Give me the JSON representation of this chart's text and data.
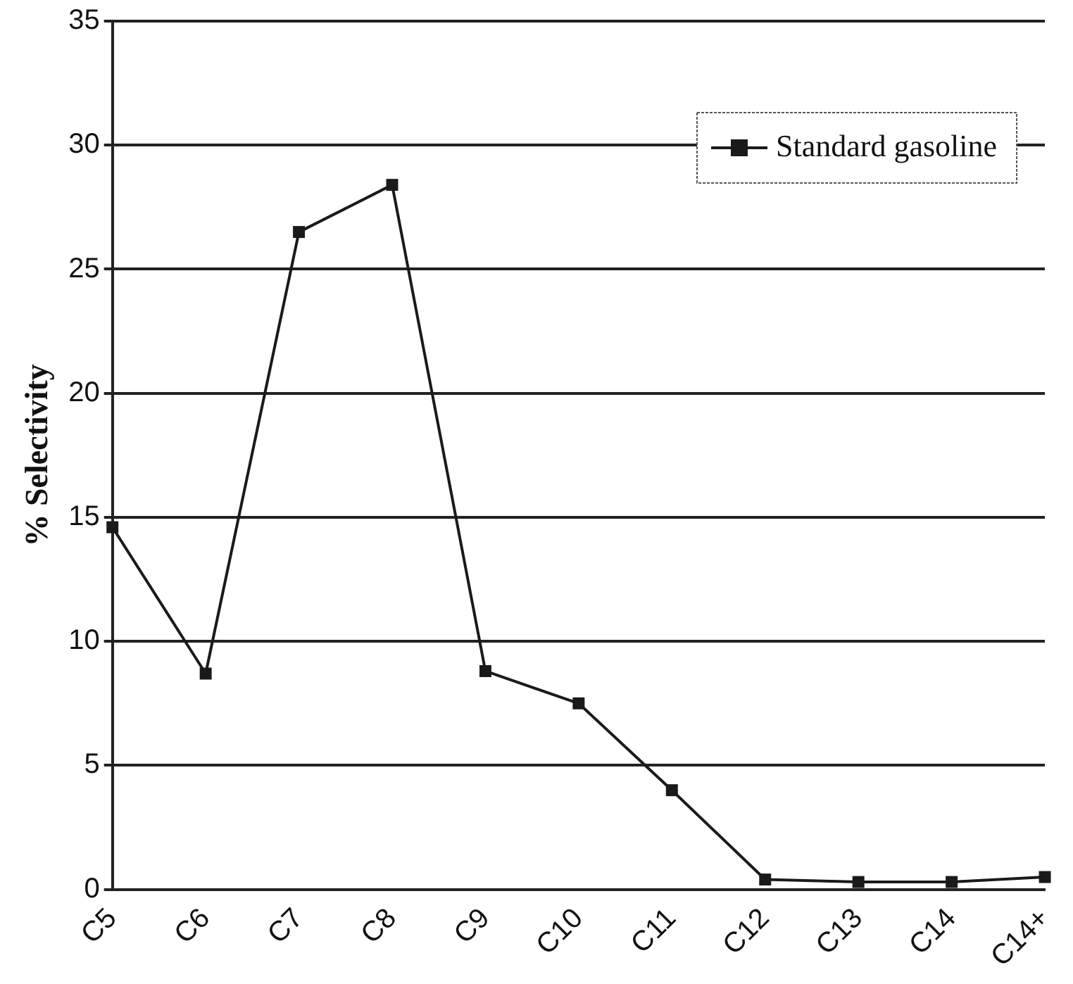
{
  "chart_data": {
    "type": "line",
    "ylabel": "% Selectivity",
    "categories": [
      "C5",
      "C6",
      "C7",
      "C8",
      "C9",
      "C10",
      "C11",
      "C12",
      "C13",
      "C14",
      "C14+"
    ],
    "series": [
      {
        "name": "Standard gasoline",
        "color": "#1a1a1a",
        "values": [
          14.6,
          8.7,
          26.5,
          28.4,
          8.8,
          7.5,
          4.0,
          0.4,
          0.3,
          0.3,
          0.5
        ]
      }
    ],
    "ylim": [
      0,
      35
    ],
    "yticks": [
      0,
      5,
      10,
      15,
      20,
      25,
      30,
      35
    ],
    "grid": "y",
    "legend": "top right",
    "marker": "square",
    "line_style": "solid"
  }
}
